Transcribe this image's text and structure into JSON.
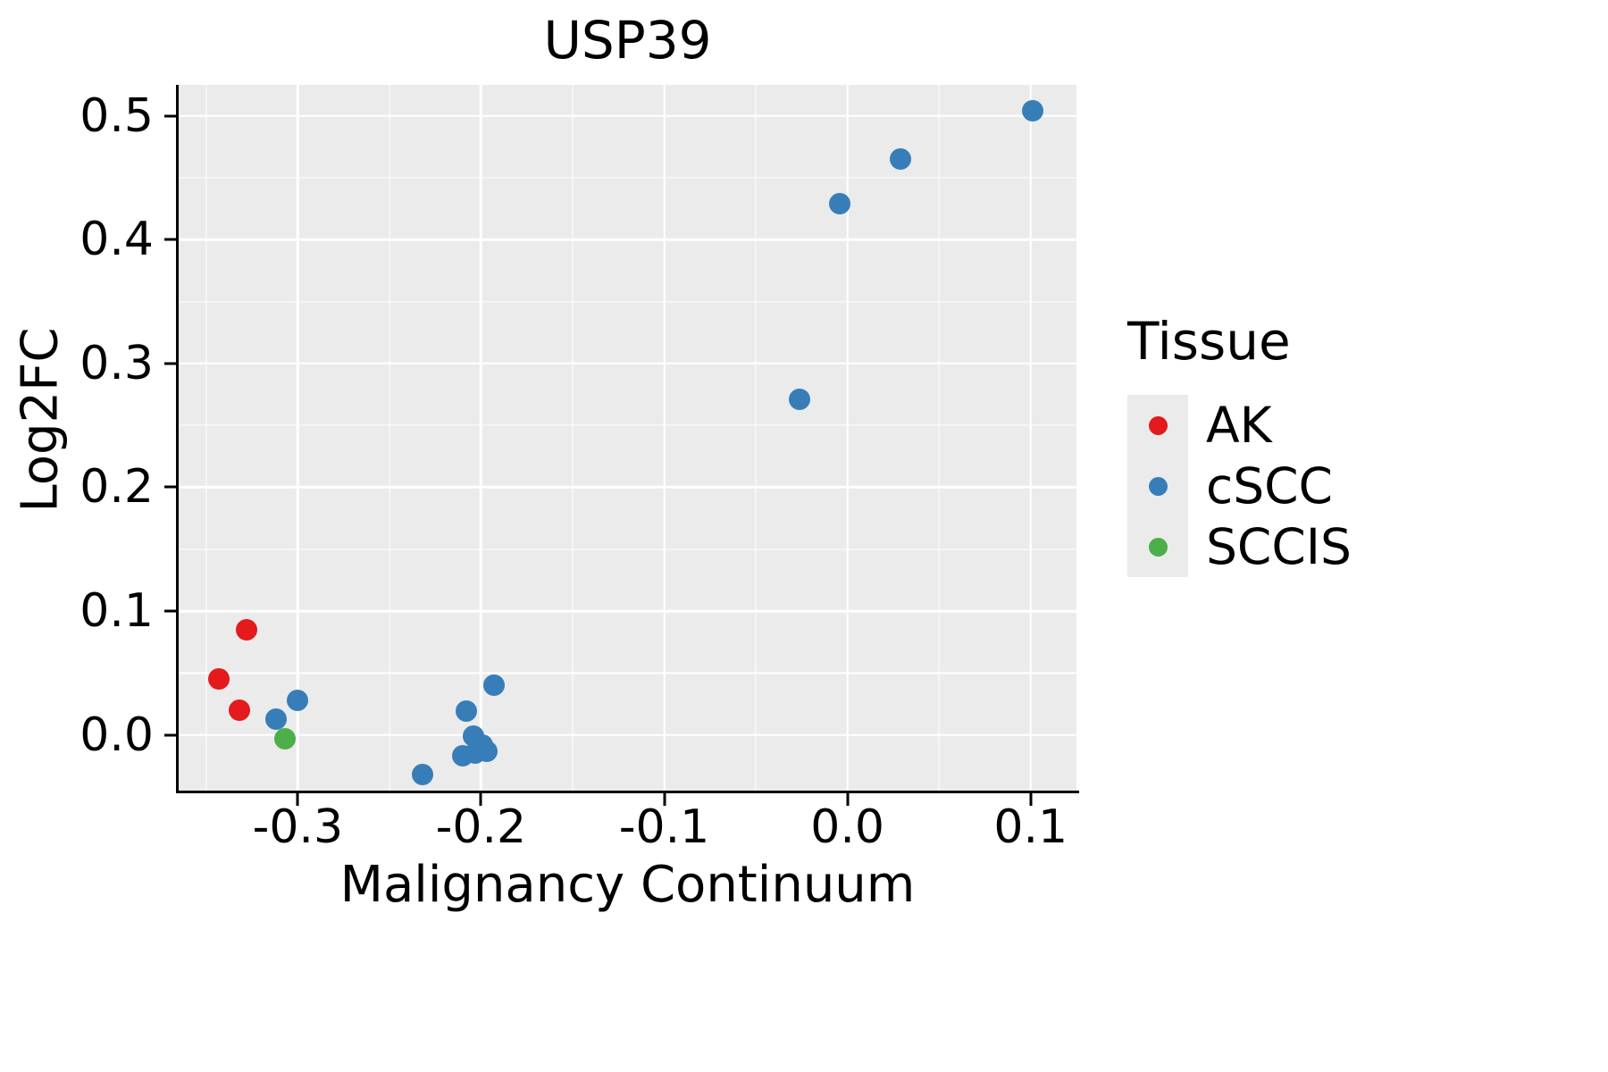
{
  "title": "USP39",
  "axes": {
    "x_label": "Malignancy Continuum",
    "y_label": "Log2FC"
  },
  "legend": {
    "title": "Tissue",
    "items": [
      {
        "label": "AK",
        "color": "#E41A1C"
      },
      {
        "label": "cSCC",
        "color": "#377EB8"
      },
      {
        "label": "SCCIS",
        "color": "#4DAF4A"
      }
    ]
  },
  "chart_data": {
    "type": "scatter",
    "title": "USP39",
    "xlabel": "Malignancy Continuum",
    "ylabel": "Log2FC",
    "xlim": [
      -0.365,
      0.125
    ],
    "ylim": [
      -0.045,
      0.525
    ],
    "x_ticks": [
      -0.3,
      -0.2,
      -0.1,
      0.0,
      0.1
    ],
    "x_tick_labels": [
      "-0.3",
      "-0.2",
      "-0.1",
      "0.0",
      "0.1"
    ],
    "y_ticks": [
      0.0,
      0.1,
      0.2,
      0.3,
      0.4,
      0.5
    ],
    "y_tick_labels": [
      "0.0",
      "0.1",
      "0.2",
      "0.3",
      "0.4",
      "0.5"
    ],
    "grid": true,
    "panel_background": "#EBEBEB",
    "legend_position": "right",
    "series": [
      {
        "name": "AK",
        "color": "#E41A1C",
        "points": [
          [
            -0.343,
            0.045
          ],
          [
            -0.332,
            0.02
          ],
          [
            -0.328,
            0.085
          ]
        ]
      },
      {
        "name": "cSCC",
        "color": "#377EB8",
        "points": [
          [
            -0.312,
            0.013
          ],
          [
            -0.3,
            0.028
          ],
          [
            -0.232,
            -0.032
          ],
          [
            -0.21,
            -0.017
          ],
          [
            -0.208,
            0.019
          ],
          [
            -0.204,
            -0.001
          ],
          [
            -0.203,
            -0.015
          ],
          [
            -0.199,
            -0.008
          ],
          [
            -0.197,
            -0.013
          ],
          [
            -0.193,
            0.04
          ],
          [
            -0.026,
            0.271
          ],
          [
            -0.004,
            0.429
          ],
          [
            0.029,
            0.465
          ],
          [
            0.101,
            0.504
          ]
        ]
      },
      {
        "name": "SCCIS",
        "color": "#4DAF4A",
        "points": [
          [
            -0.307,
            -0.003
          ]
        ]
      }
    ]
  }
}
